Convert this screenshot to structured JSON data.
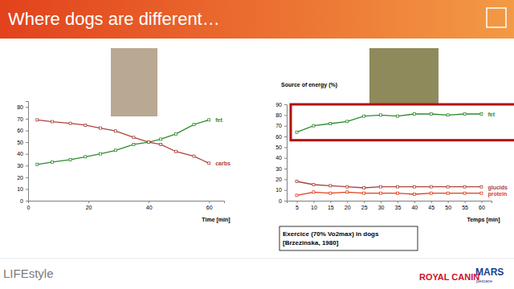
{
  "header": {
    "title": "Where dogs are different…"
  },
  "footer": {
    "left": "LIFEstyle",
    "logos": [
      "ROYAL CANIN",
      "MARS",
      "petcare"
    ]
  },
  "chart_data": [
    {
      "type": "line",
      "x_label": "Time [min]",
      "x": [
        3,
        8,
        14,
        19,
        24,
        29,
        35,
        40,
        44,
        49,
        55,
        60
      ],
      "series": [
        {
          "name": "fet",
          "color": "#2e8b2e",
          "values": [
            31,
            33,
            35,
            37.5,
            40,
            43,
            48,
            50,
            52.5,
            57,
            65,
            69
          ]
        },
        {
          "name": "carbs",
          "color": "#a8443c",
          "values": [
            69,
            67.5,
            66,
            64.5,
            62,
            59.5,
            54,
            50,
            48,
            42,
            38,
            32
          ]
        }
      ],
      "xlim": [
        0,
        65
      ],
      "xticks": [
        0,
        20,
        40,
        60
      ],
      "ylim": [
        0,
        85
      ],
      "yticks": [
        0,
        10,
        20,
        30,
        40,
        50,
        60,
        70,
        80
      ],
      "marker": "square",
      "grid": false
    },
    {
      "type": "line",
      "title": "Source of energy (%)",
      "x_label": "Temps [min]",
      "x": [
        5,
        10,
        15,
        20,
        25,
        30,
        35,
        40,
        45,
        50,
        55,
        60
      ],
      "series": [
        {
          "name": "fet",
          "color": "#2e8b2e",
          "values": [
            64,
            70,
            72,
            74,
            79,
            80,
            79,
            81,
            81,
            80,
            81,
            81
          ]
        },
        {
          "name": "glucids",
          "color": "#a8443c",
          "values": [
            18,
            15,
            14,
            13,
            12,
            13,
            13,
            13,
            13,
            13,
            13,
            13
          ]
        },
        {
          "name": "protein",
          "color": "#e0401c",
          "values": [
            5,
            8,
            7,
            8,
            7,
            7,
            7,
            6,
            7,
            7,
            7,
            7
          ]
        }
      ],
      "xlim": [
        2,
        63
      ],
      "xticks": [
        5,
        10,
        15,
        20,
        25,
        30,
        35,
        40,
        45,
        50,
        55,
        60
      ],
      "ylim": [
        0,
        90
      ],
      "yticks": [
        0,
        10,
        20,
        30,
        40,
        50,
        60,
        70,
        80,
        90
      ],
      "annotations": [
        "Exercice (70% Vo2max) in dogs",
        "[Brzezinska, 1980]"
      ],
      "marker": "square",
      "grid": false
    }
  ]
}
